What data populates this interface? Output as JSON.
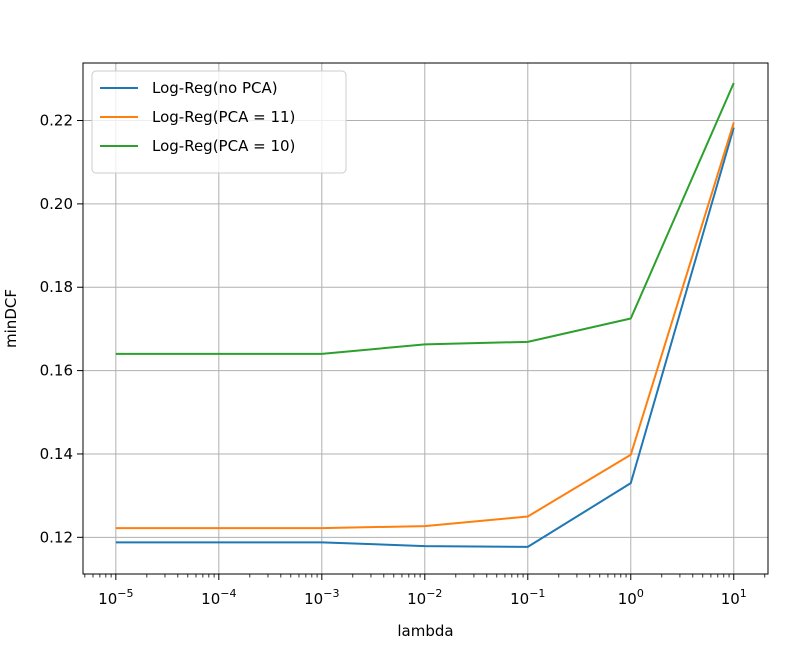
{
  "chart_data": {
    "type": "line",
    "xlabel": "lambda",
    "ylabel": "minDCF",
    "x_scale": "log",
    "x": [
      1e-05,
      0.0001,
      0.001,
      0.01,
      0.1,
      1,
      10
    ],
    "x_tick_labels": [
      {
        "base": "10",
        "exp": "−5"
      },
      {
        "base": "10",
        "exp": "−4"
      },
      {
        "base": "10",
        "exp": "−3"
      },
      {
        "base": "10",
        "exp": "−2"
      },
      {
        "base": "10",
        "exp": "−1"
      },
      {
        "base": "10",
        "exp": "0"
      },
      {
        "base": "10",
        "exp": "1"
      }
    ],
    "xlim": [
      4.8e-06,
      21.5
    ],
    "ylim": [
      0.1112,
      0.2338
    ],
    "y_ticks": [
      0.12,
      0.14,
      0.16,
      0.18,
      0.2,
      0.22
    ],
    "y_tick_labels": [
      "0.12",
      "0.14",
      "0.16",
      "0.18",
      "0.20",
      "0.22"
    ],
    "grid": true,
    "legend_position": "top-left",
    "series": [
      {
        "name": "Log-Reg(no PCA)",
        "color": "#1f77b4",
        "values": [
          0.1188,
          0.1188,
          0.1188,
          0.1179,
          0.1177,
          0.133,
          0.2183
        ]
      },
      {
        "name": "Log-Reg(PCA = 11)",
        "color": "#ff7f0e",
        "values": [
          0.1222,
          0.1222,
          0.1222,
          0.1227,
          0.125,
          0.1398,
          0.2195
        ]
      },
      {
        "name": "Log-Reg(PCA = 10)",
        "color": "#2ca02c",
        "values": [
          0.164,
          0.164,
          0.164,
          0.1663,
          0.1669,
          0.1725,
          0.229
        ]
      }
    ]
  }
}
